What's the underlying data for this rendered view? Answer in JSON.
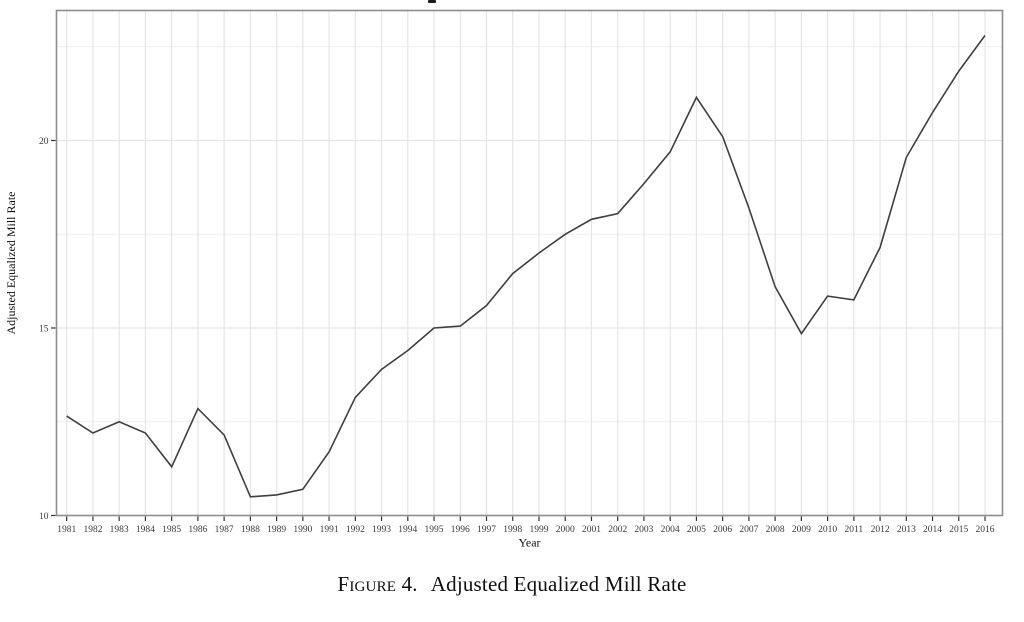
{
  "caption": {
    "label": "Figure 4.",
    "title": "Adjusted Equalized Mill Rate"
  },
  "chart_data": {
    "type": "line",
    "title": "",
    "xlabel": "Year",
    "ylabel": "Adjusted Equalized Mill Rate",
    "x": [
      1981,
      1982,
      1983,
      1984,
      1985,
      1986,
      1987,
      1988,
      1989,
      1990,
      1991,
      1992,
      1993,
      1994,
      1995,
      1996,
      1997,
      1998,
      1999,
      2000,
      2001,
      2002,
      2003,
      2004,
      2005,
      2006,
      2007,
      2008,
      2009,
      2010,
      2011,
      2012,
      2013,
      2014,
      2015,
      2016
    ],
    "values": [
      12.65,
      12.2,
      12.5,
      12.2,
      11.3,
      12.85,
      12.15,
      10.5,
      10.55,
      10.7,
      11.7,
      13.15,
      13.9,
      14.4,
      15.0,
      15.05,
      15.6,
      16.45,
      17.0,
      17.5,
      17.9,
      18.05,
      18.85,
      19.7,
      21.15,
      20.1,
      18.2,
      16.1,
      14.85,
      15.85,
      15.75,
      17.15,
      19.55,
      20.75,
      21.85,
      22.8
    ],
    "ylim": [
      10,
      23.5
    ],
    "yticks": [
      10,
      15,
      20
    ],
    "yticks_minor": [
      12.5,
      17.5,
      22.5
    ],
    "grid": "on",
    "legend": "none",
    "colors": {
      "line": "#3f3f3f",
      "panel_border": "#8e8e8e",
      "grid_major": "#e5e5e5",
      "grid_minor": "#f0f0f0",
      "tick": "#333333",
      "tick_label": "#3a3a3a",
      "background": "#ffffff"
    }
  }
}
